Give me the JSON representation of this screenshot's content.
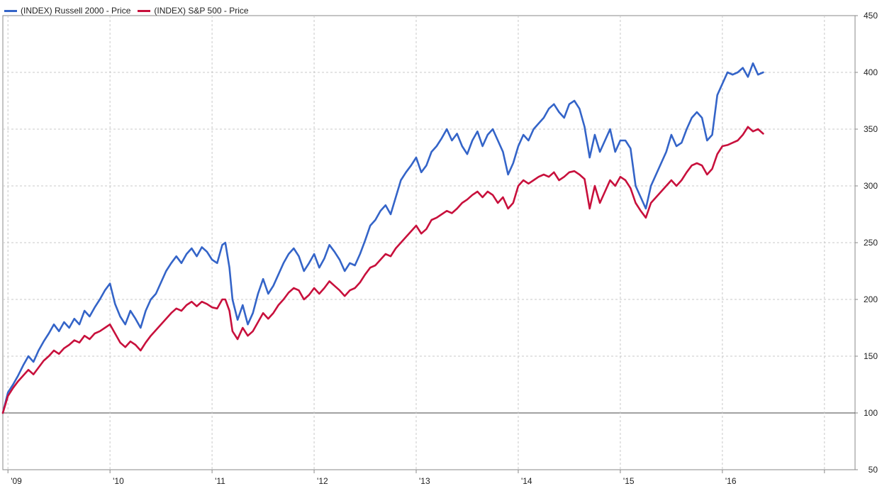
{
  "colors": {
    "russell": "#3464c8",
    "sp500": "#c8103c",
    "grid": "#c8c8c8",
    "frame": "#888888",
    "baseline": "#444444"
  },
  "legend": [
    {
      "label": "(INDEX) Russell 2000 - Price",
      "color": "#3464c8"
    },
    {
      "label": "(INDEX) S&P 500 - Price",
      "color": "#c8103c"
    }
  ],
  "chart_data": {
    "type": "line",
    "title": "",
    "xlabel": "",
    "ylabel": "",
    "x_axis": {
      "unit": "year",
      "ticks": [
        "'09",
        "'10",
        "'11",
        "'12",
        "'13",
        "'14",
        "'15",
        "'16"
      ],
      "range": [
        2008.95,
        2017.3
      ]
    },
    "ylim": [
      50,
      450
    ],
    "y_ticks": [
      50,
      100,
      150,
      200,
      250,
      300,
      350,
      400,
      450
    ],
    "baseline": 100,
    "grid": true,
    "legend_position": "top-left",
    "series": [
      {
        "name": "(INDEX) Russell 2000 - Price",
        "color": "#3464c8",
        "points": [
          [
            2008.95,
            100
          ],
          [
            2009.0,
            118
          ],
          [
            2009.05,
            125
          ],
          [
            2009.1,
            133
          ],
          [
            2009.15,
            142
          ],
          [
            2009.2,
            150
          ],
          [
            2009.25,
            145
          ],
          [
            2009.3,
            155
          ],
          [
            2009.35,
            163
          ],
          [
            2009.4,
            170
          ],
          [
            2009.45,
            178
          ],
          [
            2009.5,
            172
          ],
          [
            2009.55,
            180
          ],
          [
            2009.6,
            175
          ],
          [
            2009.65,
            183
          ],
          [
            2009.7,
            178
          ],
          [
            2009.75,
            190
          ],
          [
            2009.8,
            185
          ],
          [
            2009.85,
            193
          ],
          [
            2009.9,
            200
          ],
          [
            2009.95,
            208
          ],
          [
            2010.0,
            214
          ],
          [
            2010.05,
            196
          ],
          [
            2010.1,
            185
          ],
          [
            2010.15,
            178
          ],
          [
            2010.2,
            190
          ],
          [
            2010.25,
            183
          ],
          [
            2010.3,
            175
          ],
          [
            2010.35,
            190
          ],
          [
            2010.4,
            200
          ],
          [
            2010.45,
            205
          ],
          [
            2010.5,
            215
          ],
          [
            2010.55,
            225
          ],
          [
            2010.6,
            232
          ],
          [
            2010.65,
            238
          ],
          [
            2010.7,
            232
          ],
          [
            2010.75,
            240
          ],
          [
            2010.8,
            245
          ],
          [
            2010.85,
            238
          ],
          [
            2010.9,
            246
          ],
          [
            2010.95,
            242
          ],
          [
            2011.0,
            235
          ],
          [
            2011.05,
            232
          ],
          [
            2011.1,
            248
          ],
          [
            2011.13,
            250
          ],
          [
            2011.17,
            228
          ],
          [
            2011.2,
            200
          ],
          [
            2011.25,
            182
          ],
          [
            2011.3,
            195
          ],
          [
            2011.35,
            178
          ],
          [
            2011.4,
            188
          ],
          [
            2011.45,
            205
          ],
          [
            2011.5,
            218
          ],
          [
            2011.55,
            205
          ],
          [
            2011.6,
            212
          ],
          [
            2011.65,
            222
          ],
          [
            2011.7,
            232
          ],
          [
            2011.75,
            240
          ],
          [
            2011.8,
            245
          ],
          [
            2011.85,
            238
          ],
          [
            2011.9,
            225
          ],
          [
            2011.95,
            232
          ],
          [
            2012.0,
            240
          ],
          [
            2012.05,
            228
          ],
          [
            2012.1,
            236
          ],
          [
            2012.15,
            248
          ],
          [
            2012.2,
            242
          ],
          [
            2012.25,
            235
          ],
          [
            2012.3,
            225
          ],
          [
            2012.35,
            232
          ],
          [
            2012.4,
            230
          ],
          [
            2012.45,
            240
          ],
          [
            2012.5,
            252
          ],
          [
            2012.55,
            265
          ],
          [
            2012.6,
            270
          ],
          [
            2012.65,
            278
          ],
          [
            2012.7,
            283
          ],
          [
            2012.75,
            275
          ],
          [
            2012.8,
            290
          ],
          [
            2012.85,
            305
          ],
          [
            2012.9,
            312
          ],
          [
            2012.95,
            318
          ],
          [
            2013.0,
            325
          ],
          [
            2013.05,
            312
          ],
          [
            2013.1,
            318
          ],
          [
            2013.15,
            330
          ],
          [
            2013.2,
            335
          ],
          [
            2013.25,
            342
          ],
          [
            2013.3,
            350
          ],
          [
            2013.35,
            340
          ],
          [
            2013.4,
            346
          ],
          [
            2013.45,
            335
          ],
          [
            2013.5,
            328
          ],
          [
            2013.55,
            340
          ],
          [
            2013.6,
            348
          ],
          [
            2013.65,
            335
          ],
          [
            2013.7,
            345
          ],
          [
            2013.75,
            350
          ],
          [
            2013.8,
            340
          ],
          [
            2013.85,
            330
          ],
          [
            2013.9,
            310
          ],
          [
            2013.95,
            320
          ],
          [
            2014.0,
            335
          ],
          [
            2014.05,
            345
          ],
          [
            2014.1,
            340
          ],
          [
            2014.15,
            350
          ],
          [
            2014.2,
            355
          ],
          [
            2014.25,
            360
          ],
          [
            2014.3,
            368
          ],
          [
            2014.35,
            372
          ],
          [
            2014.4,
            365
          ],
          [
            2014.45,
            360
          ],
          [
            2014.5,
            372
          ],
          [
            2014.55,
            375
          ],
          [
            2014.6,
            368
          ],
          [
            2014.65,
            352
          ],
          [
            2014.7,
            325
          ],
          [
            2014.75,
            345
          ],
          [
            2014.8,
            330
          ],
          [
            2014.85,
            340
          ],
          [
            2014.9,
            350
          ],
          [
            2014.95,
            330
          ],
          [
            2015.0,
            340
          ],
          [
            2015.05,
            340
          ],
          [
            2015.1,
            333
          ],
          [
            2015.15,
            300
          ],
          [
            2015.2,
            290
          ],
          [
            2015.25,
            280
          ],
          [
            2015.3,
            300
          ],
          [
            2015.35,
            310
          ],
          [
            2015.4,
            320
          ],
          [
            2015.45,
            330
          ],
          [
            2015.5,
            345
          ],
          [
            2015.55,
            335
          ],
          [
            2015.6,
            338
          ],
          [
            2015.65,
            350
          ],
          [
            2015.7,
            360
          ],
          [
            2015.75,
            365
          ],
          [
            2015.8,
            360
          ],
          [
            2015.85,
            340
          ],
          [
            2015.9,
            345
          ],
          [
            2015.95,
            380
          ],
          [
            2016.0,
            390
          ],
          [
            2016.05,
            400
          ],
          [
            2016.1,
            398
          ],
          [
            2016.15,
            400
          ],
          [
            2016.2,
            404
          ],
          [
            2016.25,
            396
          ],
          [
            2016.3,
            408
          ],
          [
            2016.35,
            398
          ],
          [
            2016.4,
            400
          ]
        ]
      },
      {
        "name": "(INDEX) S&P 500 - Price",
        "color": "#c8103c",
        "points": [
          [
            2008.95,
            100
          ],
          [
            2009.0,
            115
          ],
          [
            2009.05,
            122
          ],
          [
            2009.1,
            128
          ],
          [
            2009.15,
            133
          ],
          [
            2009.2,
            138
          ],
          [
            2009.25,
            134
          ],
          [
            2009.3,
            140
          ],
          [
            2009.35,
            146
          ],
          [
            2009.4,
            150
          ],
          [
            2009.45,
            155
          ],
          [
            2009.5,
            152
          ],
          [
            2009.55,
            157
          ],
          [
            2009.6,
            160
          ],
          [
            2009.65,
            164
          ],
          [
            2009.7,
            162
          ],
          [
            2009.75,
            168
          ],
          [
            2009.8,
            165
          ],
          [
            2009.85,
            170
          ],
          [
            2009.9,
            172
          ],
          [
            2009.95,
            175
          ],
          [
            2010.0,
            178
          ],
          [
            2010.05,
            170
          ],
          [
            2010.1,
            162
          ],
          [
            2010.15,
            158
          ],
          [
            2010.2,
            163
          ],
          [
            2010.25,
            160
          ],
          [
            2010.3,
            155
          ],
          [
            2010.35,
            162
          ],
          [
            2010.4,
            168
          ],
          [
            2010.45,
            173
          ],
          [
            2010.5,
            178
          ],
          [
            2010.55,
            183
          ],
          [
            2010.6,
            188
          ],
          [
            2010.65,
            192
          ],
          [
            2010.7,
            190
          ],
          [
            2010.75,
            195
          ],
          [
            2010.8,
            198
          ],
          [
            2010.85,
            194
          ],
          [
            2010.9,
            198
          ],
          [
            2010.95,
            196
          ],
          [
            2011.0,
            193
          ],
          [
            2011.05,
            192
          ],
          [
            2011.1,
            200
          ],
          [
            2011.13,
            200
          ],
          [
            2011.17,
            190
          ],
          [
            2011.2,
            172
          ],
          [
            2011.25,
            165
          ],
          [
            2011.3,
            175
          ],
          [
            2011.35,
            168
          ],
          [
            2011.4,
            172
          ],
          [
            2011.45,
            180
          ],
          [
            2011.5,
            188
          ],
          [
            2011.55,
            183
          ],
          [
            2011.6,
            188
          ],
          [
            2011.65,
            195
          ],
          [
            2011.7,
            200
          ],
          [
            2011.75,
            206
          ],
          [
            2011.8,
            210
          ],
          [
            2011.85,
            208
          ],
          [
            2011.9,
            200
          ],
          [
            2011.95,
            204
          ],
          [
            2012.0,
            210
          ],
          [
            2012.05,
            205
          ],
          [
            2012.1,
            210
          ],
          [
            2012.15,
            216
          ],
          [
            2012.2,
            212
          ],
          [
            2012.25,
            208
          ],
          [
            2012.3,
            203
          ],
          [
            2012.35,
            208
          ],
          [
            2012.4,
            210
          ],
          [
            2012.45,
            215
          ],
          [
            2012.5,
            222
          ],
          [
            2012.55,
            228
          ],
          [
            2012.6,
            230
          ],
          [
            2012.65,
            235
          ],
          [
            2012.7,
            240
          ],
          [
            2012.75,
            238
          ],
          [
            2012.8,
            245
          ],
          [
            2012.85,
            250
          ],
          [
            2012.9,
            255
          ],
          [
            2012.95,
            260
          ],
          [
            2013.0,
            265
          ],
          [
            2013.05,
            258
          ],
          [
            2013.1,
            262
          ],
          [
            2013.15,
            270
          ],
          [
            2013.2,
            272
          ],
          [
            2013.25,
            275
          ],
          [
            2013.3,
            278
          ],
          [
            2013.35,
            276
          ],
          [
            2013.4,
            280
          ],
          [
            2013.45,
            285
          ],
          [
            2013.5,
            288
          ],
          [
            2013.55,
            292
          ],
          [
            2013.6,
            295
          ],
          [
            2013.65,
            290
          ],
          [
            2013.7,
            295
          ],
          [
            2013.75,
            292
          ],
          [
            2013.8,
            285
          ],
          [
            2013.85,
            290
          ],
          [
            2013.9,
            280
          ],
          [
            2013.95,
            285
          ],
          [
            2014.0,
            300
          ],
          [
            2014.05,
            305
          ],
          [
            2014.1,
            302
          ],
          [
            2014.15,
            305
          ],
          [
            2014.2,
            308
          ],
          [
            2014.25,
            310
          ],
          [
            2014.3,
            308
          ],
          [
            2014.35,
            312
          ],
          [
            2014.4,
            305
          ],
          [
            2014.45,
            308
          ],
          [
            2014.5,
            312
          ],
          [
            2014.55,
            313
          ],
          [
            2014.6,
            310
          ],
          [
            2014.65,
            306
          ],
          [
            2014.7,
            280
          ],
          [
            2014.75,
            300
          ],
          [
            2014.8,
            285
          ],
          [
            2014.85,
            295
          ],
          [
            2014.9,
            305
          ],
          [
            2014.95,
            300
          ],
          [
            2015.0,
            308
          ],
          [
            2015.05,
            305
          ],
          [
            2015.1,
            298
          ],
          [
            2015.15,
            285
          ],
          [
            2015.2,
            278
          ],
          [
            2015.25,
            272
          ],
          [
            2015.3,
            285
          ],
          [
            2015.35,
            290
          ],
          [
            2015.4,
            295
          ],
          [
            2015.45,
            300
          ],
          [
            2015.5,
            305
          ],
          [
            2015.55,
            300
          ],
          [
            2015.6,
            305
          ],
          [
            2015.65,
            312
          ],
          [
            2015.7,
            318
          ],
          [
            2015.75,
            320
          ],
          [
            2015.8,
            318
          ],
          [
            2015.85,
            310
          ],
          [
            2015.9,
            315
          ],
          [
            2015.95,
            328
          ],
          [
            2016.0,
            335
          ],
          [
            2016.05,
            336
          ],
          [
            2016.1,
            338
          ],
          [
            2016.15,
            340
          ],
          [
            2016.2,
            345
          ],
          [
            2016.25,
            352
          ],
          [
            2016.3,
            348
          ],
          [
            2016.35,
            350
          ],
          [
            2016.4,
            346
          ]
        ]
      }
    ]
  }
}
